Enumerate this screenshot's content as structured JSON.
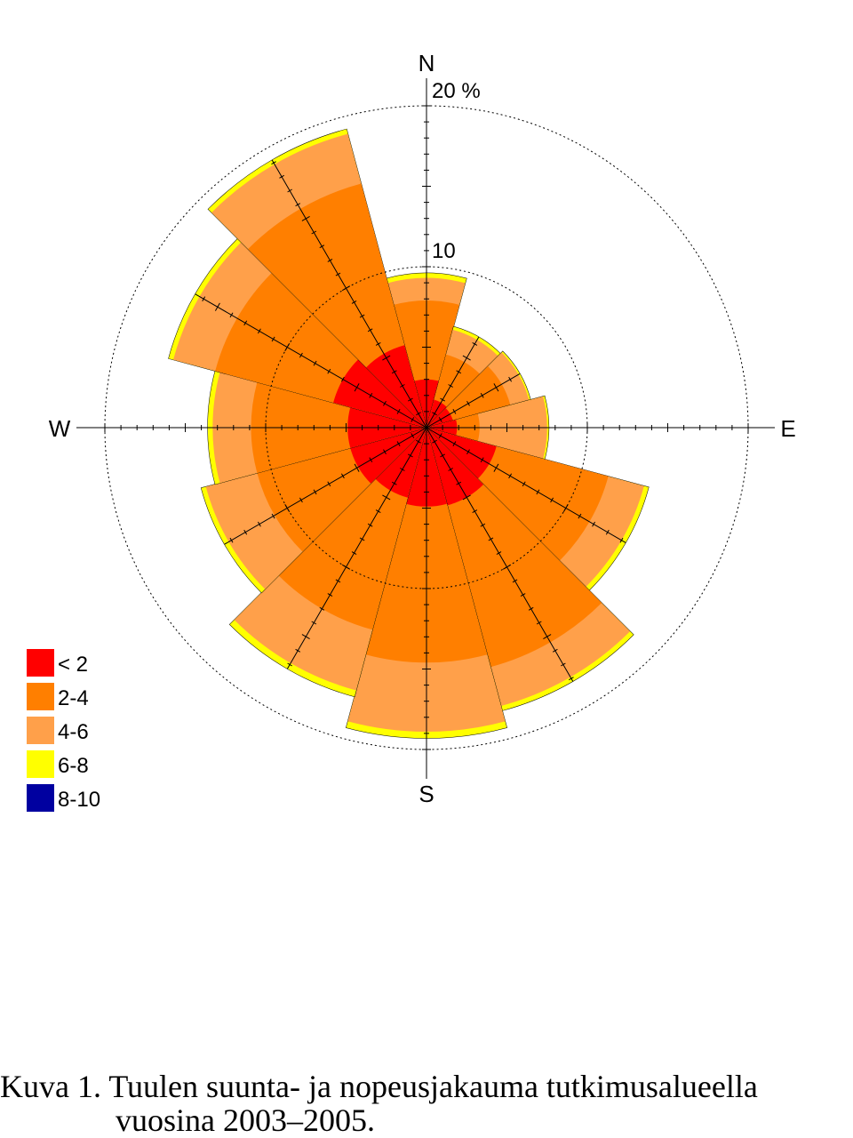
{
  "chart_data": {
    "type": "wind-rose",
    "compass_labels": {
      "n": "N",
      "e": "E",
      "s": "S",
      "w": "W"
    },
    "ring_labels": [
      "10",
      "20 %"
    ],
    "ring_values": [
      10,
      20
    ],
    "radial_max": 20,
    "sector_centers_deg": [
      0,
      30,
      60,
      90,
      120,
      150,
      180,
      210,
      240,
      270,
      300,
      330
    ],
    "legend": [
      {
        "label": "< 2",
        "color": "#ff0000"
      },
      {
        "label": "2-4",
        "color": "#ff7f00"
      },
      {
        "label": "4-6",
        "color": "#ffa04a"
      },
      {
        "label": "6-8",
        "color": "#ffff00"
      },
      {
        "label": "8-10",
        "color": "#0000a0"
      }
    ],
    "series": [
      {
        "name": "< 2",
        "values": [
          3.0,
          1.8,
          1.7,
          1.9,
          4.5,
          5.0,
          4.9,
          4.5,
          4.9,
          4.9,
          6.0,
          5.3
        ]
      },
      {
        "name": "2-4",
        "values": [
          7.9,
          4.7,
          5.4,
          3.3,
          11.7,
          15.4,
          14.6,
          13.0,
          10.9,
          10.9,
          13.6,
          15.7
        ]
      },
      {
        "name": "4-6",
        "values": [
          9.3,
          6.3,
          6.6,
          7.5,
          14.0,
          17.9,
          18.9,
          16.9,
          14.2,
          13.3,
          16.3,
          18.9
        ]
      },
      {
        "name": "6-8",
        "values": [
          9.6,
          6.5,
          6.7,
          7.6,
          14.3,
          18.2,
          19.3,
          17.3,
          14.5,
          13.6,
          16.6,
          19.2
        ]
      },
      {
        "name": "8-10",
        "values": [
          9.6,
          6.5,
          6.7,
          7.6,
          14.3,
          18.2,
          19.3,
          17.3,
          14.5,
          13.6,
          16.6,
          19.2
        ]
      }
    ]
  },
  "caption": {
    "line1": "Kuva 1. Tuulen suunta- ja nopeusjakauma tutkimusalueella",
    "line2": "vuosina 2003–2005."
  }
}
